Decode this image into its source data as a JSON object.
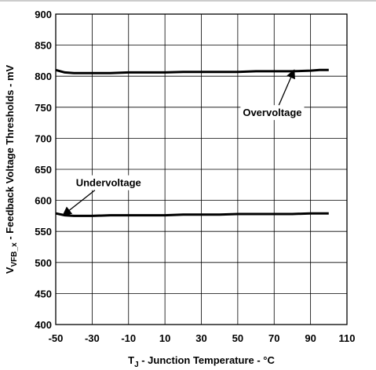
{
  "chart_data": {
    "type": "line",
    "title": "",
    "xlabel": {
      "prefix": "T",
      "subscript": "J",
      "suffix": " - Junction Temperature - °C"
    },
    "ylabel": {
      "prefix": "V",
      "subscript": "VFB_x",
      "suffix": " - Feedback Voltage Thresholds - mV"
    },
    "xlim": [
      -50,
      110
    ],
    "ylim": [
      400,
      900
    ],
    "x_ticks": [
      "-50",
      "-30",
      "-10",
      "10",
      "30",
      "50",
      "70",
      "90",
      "110"
    ],
    "y_ticks": [
      "400",
      "450",
      "500",
      "550",
      "600",
      "650",
      "700",
      "750",
      "800",
      "850",
      "900"
    ],
    "grid": true,
    "legend": "none",
    "line_color": "#000000",
    "series": [
      {
        "name": "Overvoltage",
        "x": [
          -50,
          -45,
          -40,
          -30,
          -20,
          -10,
          0,
          10,
          20,
          30,
          40,
          50,
          60,
          70,
          80,
          90,
          95,
          100
        ],
        "y": [
          810,
          806,
          805,
          805,
          805,
          806,
          806,
          806,
          807,
          807,
          807,
          807,
          808,
          808,
          808,
          809,
          810,
          810
        ]
      },
      {
        "name": "Undervoltage",
        "x": [
          -50,
          -45,
          -40,
          -30,
          -20,
          -10,
          0,
          10,
          20,
          30,
          40,
          50,
          60,
          70,
          80,
          90,
          100
        ],
        "y": [
          579,
          576,
          575,
          575,
          576,
          576,
          576,
          576,
          577,
          577,
          577,
          578,
          578,
          578,
          578,
          579,
          579
        ]
      }
    ],
    "annotations": [
      {
        "text": "Overvoltage",
        "series": "Overvoltage",
        "point_x": 81,
        "point_y": 810,
        "label_x": 69,
        "label_y": 742
      },
      {
        "text": "Undervoltage",
        "series": "Undervoltage",
        "point_x": -46,
        "point_y": 576,
        "label_x": -21,
        "label_y": 629
      }
    ]
  }
}
